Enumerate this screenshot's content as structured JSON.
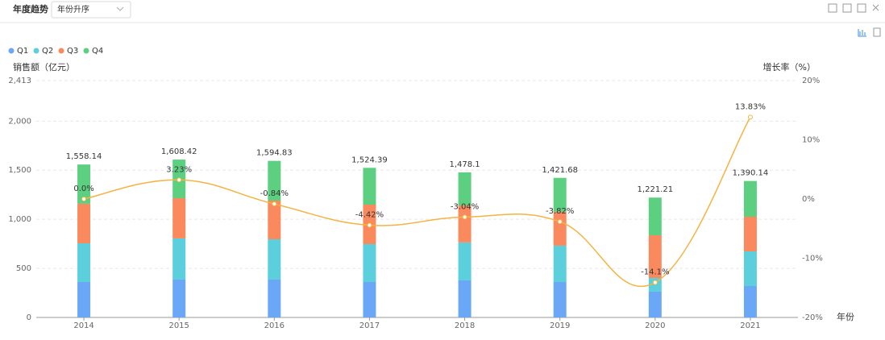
{
  "header": {
    "title": "年度趋势",
    "sort": "年份升序"
  },
  "chart_data": {
    "type": "stacked-bar-line",
    "y_label": "销售额（亿元）",
    "y2_label": "增长率（%）",
    "x_label": "年份",
    "categories": [
      "2014",
      "2015",
      "2016",
      "2017",
      "2018",
      "2019",
      "2020",
      "2021"
    ],
    "series": [
      {
        "name": "Q1",
        "color": "#6aa8f7",
        "values": [
          361,
          386,
          386,
          361,
          378,
          361,
          263,
          320
        ]
      },
      {
        "name": "Q2",
        "color": "#5ccfdc",
        "values": [
          394,
          419,
          410,
          386,
          386,
          370,
          139,
          353
        ]
      },
      {
        "name": "Q3",
        "color": "#fa8a5d",
        "values": [
          403,
          410,
          394,
          402,
          377,
          345,
          435,
          353
        ]
      },
      {
        "name": "Q4",
        "color": "#5dcf80",
        "values": [
          400,
          393,
          405,
          375,
          337,
          346,
          384,
          364
        ]
      }
    ],
    "totals": {
      "values": [
        1558.14,
        1608.42,
        1594.83,
        1524.39,
        1478.1,
        1421.68,
        1221.21,
        1390.14
      ],
      "value_labels": [
        "1,558.14",
        "1,608.42",
        "1,594.83",
        "1,524.39",
        "1,478.1",
        "1,421.68",
        "1,221.21",
        "1,390.14"
      ]
    },
    "growth": {
      "axis": "y2",
      "color": "#f5b342",
      "values": [
        0.0,
        3.23,
        -0.84,
        -4.42,
        -3.04,
        -3.82,
        -14.1,
        13.83
      ],
      "value_labels": [
        "0.0%",
        "3.23%",
        "-0.84%",
        "-4.42%",
        "-3.04%",
        "-3.82%",
        "-14.1%",
        "13.83%"
      ]
    },
    "ylim": [
      0,
      2413
    ],
    "yticks": [
      0,
      500,
      {
        "value": 1000,
        "label": "1,000"
      },
      {
        "value": 1500,
        "label": "1,500"
      },
      {
        "value": 2000,
        "label": "2,000"
      },
      {
        "value": 2413,
        "label": "2,413"
      }
    ],
    "y2lim": [
      -20,
      20
    ],
    "y2ticks": [
      {
        "value": -20,
        "label": "-20%"
      },
      {
        "value": -10,
        "label": "-10%"
      },
      {
        "value": 0,
        "label": "0%"
      },
      {
        "value": 10,
        "label": "10%"
      },
      {
        "value": 20,
        "label": "20%"
      }
    ],
    "grid": true
  }
}
